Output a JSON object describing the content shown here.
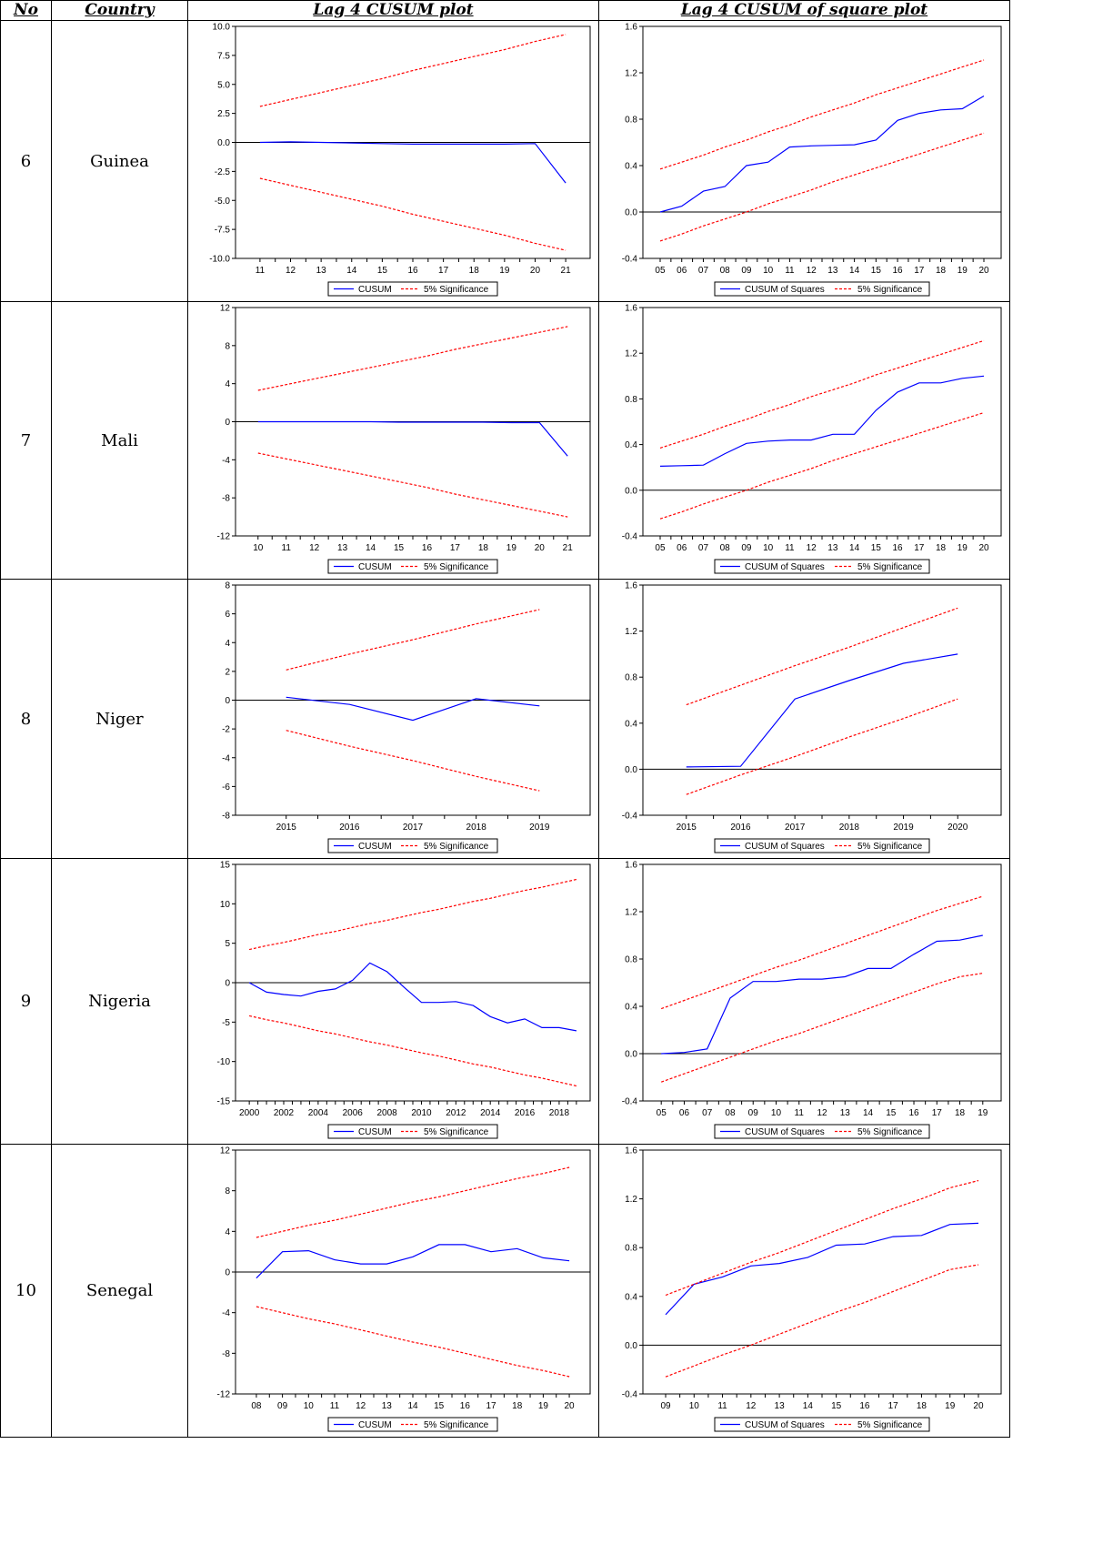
{
  "header": {
    "no": "No",
    "country": "Country",
    "cusum": "Lag 4 CUSUM plot",
    "cusumsq": "Lag 4 CUSUM of square plot"
  },
  "legend": {
    "cusum": "CUSUM",
    "cusumsq": "CUSUM of Squares",
    "sig": "5% Significance"
  },
  "colors": {
    "cusum_line": "#0000ff",
    "significance_line": "#ff0000",
    "zero_line": "#000000"
  },
  "rows": [
    {
      "no": "6",
      "country": "Guinea"
    },
    {
      "no": "7",
      "country": "Mali"
    },
    {
      "no": "8",
      "country": "Niger"
    },
    {
      "no": "9",
      "country": "Nigeria"
    },
    {
      "no": "10",
      "country": "Senegal"
    }
  ],
  "chart_data": [
    {
      "type": "line",
      "title": "",
      "row": 0,
      "kind": "cusum",
      "categories": [
        "11",
        "12",
        "13",
        "14",
        "15",
        "16",
        "17",
        "18",
        "19",
        "20",
        "21"
      ],
      "ylim": [
        -10,
        10
      ],
      "yticks": [
        "10.0",
        "7.5",
        "5.0",
        "2.5",
        "0.0",
        "-2.5",
        "-5.0",
        "-7.5",
        "-10.0"
      ],
      "ystep": 2.5,
      "series": [
        {
          "name": "CUSUM",
          "values": [
            0,
            0.05,
            0,
            -0.05,
            -0.1,
            -0.15,
            -0.15,
            -0.15,
            -0.15,
            -0.1,
            -3.5
          ]
        },
        {
          "name": "5% Significance",
          "values": [
            3.1,
            3.7,
            4.3,
            4.9,
            5.5,
            6.2,
            6.8,
            7.4,
            8.0,
            8.7,
            9.3
          ]
        },
        {
          "name": "5% Significance",
          "values": [
            -3.1,
            -3.7,
            -4.3,
            -4.9,
            -5.5,
            -6.2,
            -6.8,
            -7.4,
            -8.0,
            -8.7,
            -9.3
          ]
        }
      ]
    },
    {
      "type": "line",
      "title": "",
      "row": 0,
      "kind": "cusumsq",
      "categories": [
        "05",
        "06",
        "07",
        "08",
        "09",
        "10",
        "11",
        "12",
        "13",
        "14",
        "15",
        "16",
        "17",
        "18",
        "19",
        "20"
      ],
      "ylim": [
        -0.4,
        1.6
      ],
      "yticks": [
        "1.6",
        "1.2",
        "0.8",
        "0.4",
        "0.0",
        "-0.4"
      ],
      "ystep": 0.4,
      "series": [
        {
          "name": "CUSUM of Squares",
          "values": [
            0.0,
            0.05,
            0.18,
            0.22,
            0.4,
            0.43,
            0.56,
            0.57,
            0.575,
            0.58,
            0.62,
            0.79,
            0.85,
            0.88,
            0.89,
            1.0
          ]
        },
        {
          "name": "5% Significance",
          "values": [
            0.37,
            0.43,
            0.49,
            0.56,
            0.62,
            0.69,
            0.75,
            0.82,
            0.88,
            0.94,
            1.01,
            1.07,
            1.13,
            1.19,
            1.25,
            1.31
          ]
        },
        {
          "name": "5% Significance",
          "values": [
            -0.25,
            -0.19,
            -0.12,
            -0.06,
            0.0,
            0.07,
            0.13,
            0.19,
            0.26,
            0.32,
            0.38,
            0.44,
            0.5,
            0.56,
            0.62,
            0.68
          ]
        }
      ]
    },
    {
      "type": "line",
      "title": "",
      "row": 1,
      "kind": "cusum",
      "categories": [
        "10",
        "11",
        "12",
        "13",
        "14",
        "15",
        "16",
        "17",
        "18",
        "19",
        "20",
        "21"
      ],
      "ylim": [
        -12,
        12
      ],
      "yticks": [
        "12",
        "8",
        "4",
        "0",
        "-4",
        "-8",
        "-12"
      ],
      "ystep": 4,
      "series": [
        {
          "name": "CUSUM",
          "values": [
            0,
            0,
            0,
            0,
            0,
            -0.05,
            -0.05,
            -0.05,
            -0.05,
            -0.1,
            -0.1,
            -3.6
          ]
        },
        {
          "name": "5% Significance",
          "values": [
            3.3,
            3.9,
            4.5,
            5.1,
            5.7,
            6.3,
            6.9,
            7.6,
            8.2,
            8.8,
            9.4,
            10.0
          ]
        },
        {
          "name": "5% Significance",
          "values": [
            -3.3,
            -3.9,
            -4.5,
            -5.1,
            -5.7,
            -6.3,
            -6.9,
            -7.6,
            -8.2,
            -8.8,
            -9.4,
            -10.0
          ]
        }
      ]
    },
    {
      "type": "line",
      "title": "",
      "row": 1,
      "kind": "cusumsq",
      "categories": [
        "05",
        "06",
        "07",
        "08",
        "09",
        "10",
        "11",
        "12",
        "13",
        "14",
        "15",
        "16",
        "17",
        "18",
        "19",
        "20"
      ],
      "ylim": [
        -0.4,
        1.6
      ],
      "yticks": [
        "1.6",
        "1.2",
        "0.8",
        "0.4",
        "0.0",
        "-0.4"
      ],
      "ystep": 0.4,
      "series": [
        {
          "name": "CUSUM of Squares",
          "values": [
            0.21,
            0.215,
            0.22,
            0.32,
            0.41,
            0.43,
            0.44,
            0.44,
            0.49,
            0.49,
            0.7,
            0.86,
            0.94,
            0.94,
            0.98,
            1.0
          ]
        },
        {
          "name": "5% Significance",
          "values": [
            0.37,
            0.43,
            0.49,
            0.56,
            0.62,
            0.69,
            0.75,
            0.82,
            0.88,
            0.94,
            1.01,
            1.07,
            1.13,
            1.19,
            1.25,
            1.31
          ]
        },
        {
          "name": "5% Significance",
          "values": [
            -0.25,
            -0.19,
            -0.12,
            -0.06,
            0.0,
            0.07,
            0.13,
            0.19,
            0.26,
            0.32,
            0.38,
            0.44,
            0.5,
            0.56,
            0.62,
            0.68
          ]
        }
      ]
    },
    {
      "type": "line",
      "title": "",
      "row": 2,
      "kind": "cusum",
      "categories": [
        "2015",
        "2016",
        "2017",
        "2018",
        "2019"
      ],
      "ylim": [
        -8,
        8
      ],
      "yticks": [
        "8",
        "6",
        "4",
        "2",
        "0",
        "-2",
        "-4",
        "-6",
        "-8"
      ],
      "ystep": 2,
      "series": [
        {
          "name": "CUSUM",
          "values": [
            0.2,
            -0.3,
            -1.4,
            0.1,
            -0.4
          ]
        },
        {
          "name": "5% Significance",
          "values": [
            2.1,
            3.2,
            4.2,
            5.3,
            6.3
          ]
        },
        {
          "name": "5% Significance",
          "values": [
            -2.1,
            -3.2,
            -4.2,
            -5.3,
            -6.3
          ]
        }
      ]
    },
    {
      "type": "line",
      "title": "",
      "row": 2,
      "kind": "cusumsq",
      "categories": [
        "2015",
        "2016",
        "2017",
        "2018",
        "2019",
        "2020"
      ],
      "ylim": [
        -0.4,
        1.6
      ],
      "yticks": [
        "1.6",
        "1.2",
        "0.8",
        "0.4",
        "0.0",
        "-0.4"
      ],
      "ystep": 0.4,
      "series": [
        {
          "name": "CUSUM of Squares",
          "values": [
            0.02,
            0.025,
            0.61,
            0.77,
            0.92,
            1.0
          ]
        },
        {
          "name": "5% Significance",
          "values": [
            0.56,
            0.73,
            0.9,
            1.06,
            1.23,
            1.4
          ]
        },
        {
          "name": "5% Significance",
          "values": [
            -0.22,
            -0.05,
            0.11,
            0.28,
            0.44,
            0.61
          ]
        }
      ]
    },
    {
      "type": "line",
      "title": "",
      "row": 3,
      "kind": "cusum",
      "categories": [
        "2000",
        "2001",
        "2002",
        "2003",
        "2004",
        "2005",
        "2006",
        "2007",
        "2008",
        "2009",
        "2010",
        "2011",
        "2012",
        "2013",
        "2014",
        "2015",
        "2016",
        "2017",
        "2018",
        "2019"
      ],
      "xtick_labels": [
        "2000",
        "",
        "2002",
        "",
        "2004",
        "",
        "2006",
        "",
        "2008",
        "",
        "2010",
        "",
        "2012",
        "",
        "2014",
        "",
        "2016",
        "",
        "2018",
        ""
      ],
      "ylim": [
        -15,
        15
      ],
      "yticks": [
        "15",
        "10",
        "5",
        "0",
        "-5",
        "-10",
        "-15"
      ],
      "ystep": 5,
      "series": [
        {
          "name": "CUSUM",
          "values": [
            0,
            -1.2,
            -1.5,
            -1.7,
            -1.1,
            -0.8,
            0.3,
            2.5,
            1.4,
            -0.6,
            -2.5,
            -2.5,
            -2.4,
            -2.9,
            -4.3,
            -5.1,
            -4.6,
            -5.7,
            -5.7,
            -6.1
          ]
        },
        {
          "name": "5% Significance",
          "values": [
            4.2,
            4.7,
            5.1,
            5.6,
            6.1,
            6.5,
            7.0,
            7.5,
            7.9,
            8.4,
            8.9,
            9.3,
            9.8,
            10.3,
            10.7,
            11.2,
            11.7,
            12.1,
            12.6,
            13.1
          ]
        },
        {
          "name": "5% Significance",
          "values": [
            -4.2,
            -4.7,
            -5.1,
            -5.6,
            -6.1,
            -6.5,
            -7.0,
            -7.5,
            -7.9,
            -8.4,
            -8.9,
            -9.3,
            -9.8,
            -10.3,
            -10.7,
            -11.2,
            -11.7,
            -12.1,
            -12.6,
            -13.1
          ]
        }
      ]
    },
    {
      "type": "line",
      "title": "",
      "row": 3,
      "kind": "cusumsq",
      "categories": [
        "05",
        "06",
        "07",
        "08",
        "09",
        "10",
        "11",
        "12",
        "13",
        "14",
        "15",
        "16",
        "17",
        "18",
        "19"
      ],
      "ylim": [
        -0.4,
        1.6
      ],
      "yticks": [
        "1.6",
        "1.2",
        "0.8",
        "0.4",
        "0.0",
        "-0.4"
      ],
      "ystep": 0.4,
      "series": [
        {
          "name": "CUSUM of Squares",
          "values": [
            0.0,
            0.01,
            0.04,
            0.47,
            0.61,
            0.61,
            0.63,
            0.63,
            0.65,
            0.72,
            0.72,
            0.84,
            0.95,
            0.96,
            1.0
          ]
        },
        {
          "name": "5% Significance",
          "values": [
            0.38,
            0.45,
            0.52,
            0.59,
            0.66,
            0.73,
            0.79,
            0.86,
            0.93,
            1.0,
            1.07,
            1.14,
            1.21,
            1.27,
            1.33
          ]
        },
        {
          "name": "5% Significance",
          "values": [
            -0.24,
            -0.17,
            -0.1,
            -0.03,
            0.04,
            0.11,
            0.17,
            0.24,
            0.31,
            0.38,
            0.45,
            0.52,
            0.59,
            0.65,
            0.68
          ]
        }
      ]
    },
    {
      "type": "line",
      "title": "",
      "row": 4,
      "kind": "cusum",
      "categories": [
        "08",
        "09",
        "10",
        "11",
        "12",
        "13",
        "14",
        "15",
        "16",
        "17",
        "18",
        "19",
        "20"
      ],
      "ylim": [
        -12,
        12
      ],
      "yticks": [
        "12",
        "8",
        "4",
        "0",
        "-4",
        "-8",
        "-12"
      ],
      "ystep": 4,
      "series": [
        {
          "name": "CUSUM",
          "values": [
            -0.6,
            2.0,
            2.1,
            1.2,
            0.8,
            0.8,
            1.5,
            2.7,
            2.7,
            2.0,
            2.3,
            1.4,
            1.1
          ]
        },
        {
          "name": "5% Significance",
          "values": [
            3.4,
            4.0,
            4.6,
            5.1,
            5.7,
            6.3,
            6.9,
            7.4,
            8.0,
            8.6,
            9.2,
            9.7,
            10.3
          ]
        },
        {
          "name": "5% Significance",
          "values": [
            -3.4,
            -4.0,
            -4.6,
            -5.1,
            -5.7,
            -6.3,
            -6.9,
            -7.4,
            -8.0,
            -8.6,
            -9.2,
            -9.7,
            -10.3
          ]
        }
      ]
    },
    {
      "type": "line",
      "title": "",
      "row": 4,
      "kind": "cusumsq",
      "categories": [
        "09",
        "10",
        "11",
        "12",
        "13",
        "14",
        "15",
        "16",
        "17",
        "18",
        "19",
        "20"
      ],
      "ylim": [
        -0.4,
        1.6
      ],
      "yticks": [
        "1.6",
        "1.2",
        "0.8",
        "0.4",
        "0.0",
        "-0.4"
      ],
      "ystep": 0.4,
      "series": [
        {
          "name": "CUSUM of Squares",
          "values": [
            0.25,
            0.5,
            0.56,
            0.65,
            0.67,
            0.72,
            0.82,
            0.83,
            0.89,
            0.9,
            0.99,
            1.0
          ]
        },
        {
          "name": "5% Significance",
          "values": [
            0.41,
            0.5,
            0.59,
            0.68,
            0.76,
            0.85,
            0.94,
            1.03,
            1.12,
            1.2,
            1.29,
            1.35
          ]
        },
        {
          "name": "5% Significance",
          "values": [
            -0.26,
            -0.17,
            -0.08,
            0.0,
            0.09,
            0.18,
            0.27,
            0.35,
            0.44,
            0.53,
            0.62,
            0.66
          ]
        }
      ]
    }
  ]
}
